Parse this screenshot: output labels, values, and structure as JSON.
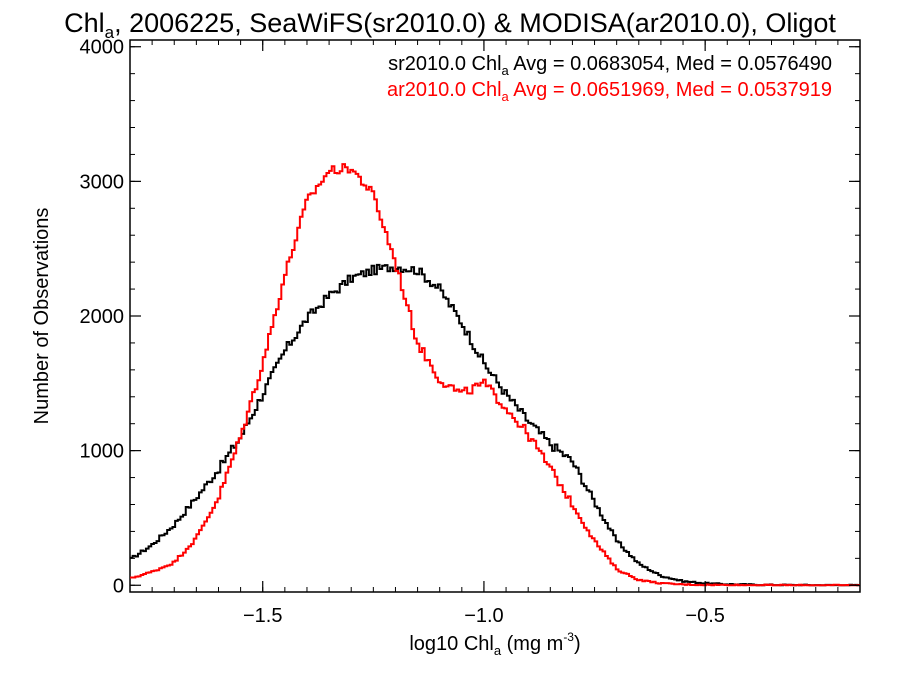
{
  "chart_data": {
    "type": "line",
    "title_main": "Chl",
    "title_sub": "a",
    "title_rest": ", 2006225, SeaWiFS(sr2010.0) & MODISA(ar2010.0), Oligot",
    "xlabel_main": "log10 Chl",
    "xlabel_sub": "a",
    "xlabel_units_pre": " (mg m",
    "xlabel_units_sup": "-3",
    "xlabel_units_post": ")",
    "ylabel": "Number of Observations",
    "xlim": [
      -1.8,
      -0.15
    ],
    "ylim": [
      -50,
      4050
    ],
    "x_ticks": [
      {
        "value": -1.5,
        "label": "−1.5"
      },
      {
        "value": -1.0,
        "label": "−1.0"
      },
      {
        "value": -0.5,
        "label": "−0.5"
      }
    ],
    "y_ticks": [
      {
        "value": 0,
        "label": "0"
      },
      {
        "value": 1000,
        "label": "1000"
      },
      {
        "value": 2000,
        "label": "2000"
      },
      {
        "value": 3000,
        "label": "3000"
      },
      {
        "value": 4000,
        "label": "4000"
      }
    ],
    "legend": [
      {
        "prefix": "sr2010.0 Chl",
        "sub": "a",
        "suffix": " Avg = 0.0683054, Med = 0.0576490",
        "color": "#000000"
      },
      {
        "prefix": "ar2010.0 Chl",
        "sub": "a",
        "suffix": " Avg = 0.0651969, Med = 0.0537919",
        "color": "#ff0000"
      }
    ],
    "legend_placement": "top-right",
    "series": [
      {
        "color": "#000000",
        "x": [
          -1.8,
          -1.75,
          -1.7,
          -1.65,
          -1.6,
          -1.55,
          -1.5,
          -1.45,
          -1.4,
          -1.35,
          -1.3,
          -1.25,
          -1.2,
          -1.15,
          -1.1,
          -1.05,
          -1.0,
          -0.95,
          -0.9,
          -0.85,
          -0.8,
          -0.75,
          -0.7,
          -0.65,
          -0.6,
          -0.55,
          -0.5,
          -0.45,
          -0.4,
          -0.35,
          -0.3,
          -0.25,
          -0.2,
          -0.15
        ],
        "y": [
          190,
          300,
          450,
          650,
          860,
          1100,
          1420,
          1740,
          1980,
          2150,
          2280,
          2340,
          2370,
          2340,
          2200,
          1950,
          1650,
          1420,
          1220,
          1050,
          920,
          620,
          330,
          160,
          70,
          30,
          15,
          8,
          5,
          3,
          2,
          1,
          1,
          0
        ]
      },
      {
        "color": "#ff0000",
        "x": [
          -1.8,
          -1.75,
          -1.7,
          -1.65,
          -1.6,
          -1.55,
          -1.5,
          -1.45,
          -1.4,
          -1.35,
          -1.3,
          -1.25,
          -1.2,
          -1.15,
          -1.1,
          -1.05,
          -1.0,
          -0.95,
          -0.9,
          -0.85,
          -0.8,
          -0.75,
          -0.7,
          -0.65,
          -0.6,
          -0.55,
          -0.5,
          -0.45,
          -0.4,
          -0.35,
          -0.3,
          -0.25,
          -0.2,
          -0.15
        ],
        "y": [
          50,
          100,
          170,
          350,
          650,
          1100,
          1650,
          2300,
          2850,
          3080,
          3100,
          2900,
          2400,
          1800,
          1530,
          1420,
          1500,
          1320,
          1120,
          870,
          600,
          330,
          120,
          40,
          15,
          6,
          3,
          2,
          1,
          1,
          0,
          0,
          0,
          0
        ]
      }
    ]
  }
}
